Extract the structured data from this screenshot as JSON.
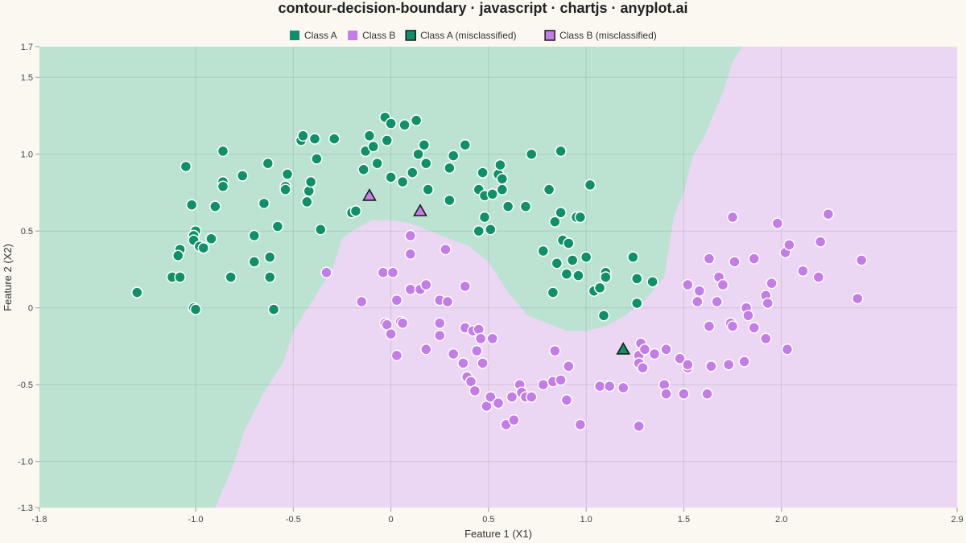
{
  "chart_data": {
    "type": "scatter",
    "title": "contour-decision-boundary · javascript · chartjs · anyplot.ai",
    "xlabel": "Feature 1 (X1)",
    "ylabel": "Feature 2 (X2)",
    "xlim": [
      -1.8,
      2.9
    ],
    "ylim": [
      -1.3,
      1.7
    ],
    "xticks": [
      "-1.8",
      "-1.0",
      "-0.5",
      "0",
      "0.5",
      "1.0",
      "1.5",
      "2.0",
      "2.9"
    ],
    "yticks": [
      "1.7",
      "1.5",
      "1.0",
      "0.5",
      "0",
      "-0.5",
      "-1.0",
      "-1.3"
    ],
    "grid": true,
    "legend_position": "top-center",
    "colors": {
      "class_a": "#0E9068",
      "class_b": "#C37CE8",
      "region_a": "#BCE3D2",
      "region_b": "#EBD7F3",
      "background": "#FAF8F1"
    },
    "background_regions": {
      "boundary_x1": [
        -1.8,
        -0.9,
        -0.8,
        -0.75,
        -0.65,
        -0.55,
        -0.5,
        -0.45,
        -0.4,
        -0.3,
        -0.25,
        -0.2,
        -0.1,
        0.0,
        0.1,
        0.2,
        0.3,
        0.4,
        0.5,
        0.55,
        0.6,
        0.7,
        0.8,
        0.9,
        1.0,
        1.1,
        1.2,
        1.3,
        1.4,
        1.45,
        1.5,
        1.55,
        1.6,
        1.7,
        1.75,
        1.8,
        2.9
      ],
      "boundary_x2": [
        -1.3,
        -1.3,
        -1.0,
        -0.8,
        -0.55,
        -0.35,
        -0.15,
        -0.05,
        0.05,
        0.25,
        0.45,
        0.5,
        0.57,
        0.57,
        0.55,
        0.5,
        0.45,
        0.4,
        0.3,
        0.2,
        0.1,
        -0.05,
        -0.1,
        -0.15,
        -0.15,
        -0.12,
        -0.05,
        0.05,
        0.2,
        0.6,
        0.75,
        1.0,
        1.1,
        1.4,
        1.6,
        1.7,
        1.7
      ]
    },
    "series": [
      {
        "name": "Class A",
        "marker": "circle",
        "points": [
          [
            -1.3,
            0.1
          ],
          [
            -1.12,
            0.2
          ],
          [
            -1.05,
            0.92
          ],
          [
            -1.02,
            0.67
          ],
          [
            -1.0,
            0.5
          ],
          [
            -1.01,
            0.47
          ],
          [
            -1.01,
            0.44
          ],
          [
            -0.98,
            0.4
          ],
          [
            -0.96,
            0.39
          ],
          [
            -1.08,
            0.38
          ],
          [
            -1.09,
            0.34
          ],
          [
            -1.08,
            0.2
          ],
          [
            -1.01,
            0.0
          ],
          [
            -1.0,
            -0.01
          ],
          [
            -0.92,
            0.45
          ],
          [
            -0.9,
            0.66
          ],
          [
            -0.86,
            0.82
          ],
          [
            -0.86,
            0.79
          ],
          [
            -0.86,
            1.02
          ],
          [
            -0.82,
            0.2
          ],
          [
            -0.76,
            0.86
          ],
          [
            -0.7,
            0.47
          ],
          [
            -0.7,
            0.3
          ],
          [
            -0.65,
            0.68
          ],
          [
            -0.63,
            0.94
          ],
          [
            -0.62,
            0.33
          ],
          [
            -0.62,
            0.2
          ],
          [
            -0.6,
            -0.01
          ],
          [
            -0.58,
            0.53
          ],
          [
            -0.54,
            0.79
          ],
          [
            -0.54,
            0.77
          ],
          [
            -0.53,
            0.87
          ],
          [
            -0.46,
            1.09
          ],
          [
            -0.45,
            1.12
          ],
          [
            -0.43,
            0.69
          ],
          [
            -0.42,
            0.76
          ],
          [
            -0.41,
            0.82
          ],
          [
            -0.39,
            1.1
          ],
          [
            -0.38,
            0.97
          ],
          [
            -0.36,
            0.51
          ],
          [
            -0.29,
            1.1
          ],
          [
            -0.2,
            0.62
          ],
          [
            -0.18,
            0.63
          ],
          [
            -0.14,
            0.9
          ],
          [
            -0.13,
            1.02
          ],
          [
            -0.11,
            1.12
          ],
          [
            -0.09,
            1.05
          ],
          [
            -0.07,
            0.94
          ],
          [
            -0.03,
            1.24
          ],
          [
            -0.02,
            1.09
          ],
          [
            0.0,
            1.2
          ],
          [
            0.0,
            0.85
          ],
          [
            0.07,
            1.19
          ],
          [
            0.06,
            0.82
          ],
          [
            0.11,
            0.88
          ],
          [
            0.13,
            1.22
          ],
          [
            0.14,
            1.0
          ],
          [
            0.17,
            1.06
          ],
          [
            0.18,
            0.94
          ],
          [
            0.19,
            0.77
          ],
          [
            0.3,
            0.91
          ],
          [
            0.3,
            0.7
          ],
          [
            0.32,
            0.99
          ],
          [
            0.38,
            1.06
          ],
          [
            0.45,
            0.77
          ],
          [
            0.45,
            0.5
          ],
          [
            0.47,
            0.88
          ],
          [
            0.48,
            0.73
          ],
          [
            0.48,
            0.59
          ],
          [
            0.52,
            0.74
          ],
          [
            0.51,
            0.51
          ],
          [
            0.55,
            0.87
          ],
          [
            0.56,
            0.93
          ],
          [
            0.57,
            0.84
          ],
          [
            0.57,
            0.77
          ],
          [
            0.6,
            0.66
          ],
          [
            0.69,
            0.66
          ],
          [
            0.72,
            1.0
          ],
          [
            0.78,
            0.37
          ],
          [
            0.81,
            0.77
          ],
          [
            0.83,
            0.1
          ],
          [
            0.84,
            0.56
          ],
          [
            0.85,
            0.29
          ],
          [
            0.87,
            1.02
          ],
          [
            0.87,
            0.62
          ],
          [
            0.88,
            0.44
          ],
          [
            0.9,
            0.22
          ],
          [
            0.91,
            0.42
          ],
          [
            0.93,
            0.31
          ],
          [
            0.95,
            0.59
          ],
          [
            0.96,
            0.21
          ],
          [
            0.97,
            0.59
          ],
          [
            1.0,
            0.33
          ],
          [
            1.02,
            0.8
          ],
          [
            1.04,
            0.11
          ],
          [
            1.07,
            0.13
          ],
          [
            1.09,
            -0.05
          ],
          [
            1.1,
            0.23
          ],
          [
            1.1,
            0.2
          ],
          [
            1.24,
            0.33
          ],
          [
            1.26,
            0.19
          ],
          [
            1.26,
            0.03
          ],
          [
            1.34,
            0.17
          ]
        ]
      },
      {
        "name": "Class B",
        "marker": "circle",
        "points": [
          [
            -0.33,
            0.23
          ],
          [
            -0.15,
            0.04
          ],
          [
            -0.04,
            0.23
          ],
          [
            -0.03,
            -0.1
          ],
          [
            -0.02,
            -0.11
          ],
          [
            0.0,
            -0.17
          ],
          [
            0.01,
            0.23
          ],
          [
            0.03,
            0.05
          ],
          [
            0.03,
            -0.31
          ],
          [
            0.05,
            -0.09
          ],
          [
            0.06,
            -0.1
          ],
          [
            0.1,
            0.35
          ],
          [
            0.1,
            0.47
          ],
          [
            0.1,
            0.12
          ],
          [
            0.15,
            0.12
          ],
          [
            0.18,
            0.15
          ],
          [
            0.18,
            -0.27
          ],
          [
            0.25,
            0.05
          ],
          [
            0.25,
            -0.1
          ],
          [
            0.25,
            -0.18
          ],
          [
            0.28,
            0.38
          ],
          [
            0.29,
            0.04
          ],
          [
            0.32,
            -0.3
          ],
          [
            0.37,
            -0.36
          ],
          [
            0.38,
            0.14
          ],
          [
            0.38,
            -0.13
          ],
          [
            0.39,
            -0.45
          ],
          [
            0.41,
            -0.48
          ],
          [
            0.42,
            -0.15
          ],
          [
            0.43,
            -0.54
          ],
          [
            0.44,
            -0.28
          ],
          [
            0.45,
            -0.14
          ],
          [
            0.46,
            -0.2
          ],
          [
            0.47,
            -0.36
          ],
          [
            0.49,
            -0.64
          ],
          [
            0.51,
            -0.58
          ],
          [
            0.52,
            -0.2
          ],
          [
            0.55,
            -0.62
          ],
          [
            0.59,
            -0.76
          ],
          [
            0.62,
            -0.58
          ],
          [
            0.63,
            -0.73
          ],
          [
            0.66,
            -0.5
          ],
          [
            0.67,
            -0.55
          ],
          [
            0.69,
            -0.58
          ],
          [
            0.72,
            -0.58
          ],
          [
            0.78,
            -0.5
          ],
          [
            0.83,
            -0.48
          ],
          [
            0.84,
            -0.28
          ],
          [
            0.87,
            -0.47
          ],
          [
            0.9,
            -0.6
          ],
          [
            0.91,
            -0.38
          ],
          [
            0.97,
            -0.76
          ],
          [
            1.07,
            -0.51
          ],
          [
            1.12,
            -0.51
          ],
          [
            1.19,
            -0.52
          ],
          [
            1.27,
            -0.31
          ],
          [
            1.27,
            -0.36
          ],
          [
            1.27,
            -0.77
          ],
          [
            1.28,
            -0.23
          ],
          [
            1.29,
            -0.39
          ],
          [
            1.3,
            -0.27
          ],
          [
            1.35,
            -0.3
          ],
          [
            1.4,
            -0.5
          ],
          [
            1.41,
            -0.27
          ],
          [
            1.41,
            -0.56
          ],
          [
            1.48,
            -0.33
          ],
          [
            1.5,
            -0.56
          ],
          [
            1.52,
            -0.39
          ],
          [
            1.52,
            -0.37
          ],
          [
            1.52,
            0.15
          ],
          [
            1.57,
            0.04
          ],
          [
            1.58,
            0.11
          ],
          [
            1.62,
            -0.56
          ],
          [
            1.63,
            0.32
          ],
          [
            1.63,
            -0.12
          ],
          [
            1.64,
            -0.38
          ],
          [
            1.67,
            0.04
          ],
          [
            1.68,
            0.2
          ],
          [
            1.7,
            0.15
          ],
          [
            1.73,
            -0.37
          ],
          [
            1.74,
            -0.1
          ],
          [
            1.75,
            -0.12
          ],
          [
            1.75,
            0.59
          ],
          [
            1.76,
            0.3
          ],
          [
            1.81,
            -0.35
          ],
          [
            1.82,
            0.0
          ],
          [
            1.83,
            -0.05
          ],
          [
            1.86,
            -0.13
          ],
          [
            1.86,
            0.32
          ],
          [
            1.92,
            -0.2
          ],
          [
            1.92,
            0.08
          ],
          [
            1.93,
            0.03
          ],
          [
            1.95,
            0.16
          ],
          [
            1.98,
            0.55
          ],
          [
            2.02,
            0.36
          ],
          [
            2.03,
            -0.27
          ],
          [
            2.04,
            0.41
          ],
          [
            2.11,
            0.24
          ],
          [
            2.19,
            0.2
          ],
          [
            2.2,
            0.43
          ],
          [
            2.24,
            0.61
          ],
          [
            2.39,
            0.06
          ],
          [
            2.41,
            0.31
          ]
        ]
      },
      {
        "name": "Class A (misclassified)",
        "marker": "triangle",
        "points": [
          [
            1.19,
            -0.27
          ]
        ]
      },
      {
        "name": "Class B (misclassified)",
        "marker": "triangle",
        "points": [
          [
            -0.11,
            0.73
          ],
          [
            0.15,
            0.63
          ]
        ]
      }
    ]
  }
}
